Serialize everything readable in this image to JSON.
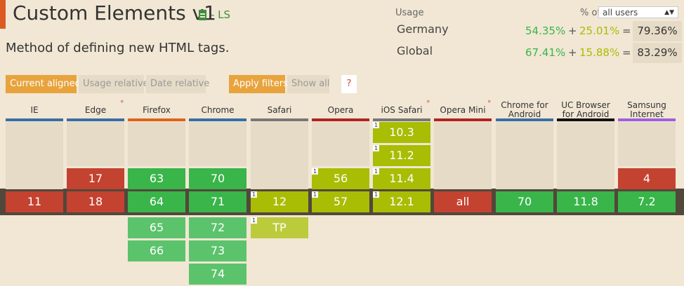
{
  "feature": {
    "title": "Custom Elements v1",
    "status": "- LS",
    "description": "Method of defining new HTML tags."
  },
  "usage": {
    "label": "Usage",
    "pct_of": "% of",
    "scope_select": "all users",
    "rows": [
      {
        "label": "Germany",
        "supported": "54.35%",
        "partial": "25.01%",
        "total": "79.36%"
      },
      {
        "label": "Global",
        "supported": "67.41%",
        "partial": "15.88%",
        "total": "83.29%"
      }
    ],
    "plus": "+",
    "equals": "="
  },
  "filters": {
    "current_aligned": "Current aligned",
    "usage_relative": "Usage relative",
    "date_relative": "Date relative",
    "apply_filters": "Apply filters",
    "show_all": "Show all",
    "help": "?"
  },
  "colors": {
    "supported": "#39b54a",
    "partial": "#a8bd04",
    "unsupported": "#c44230"
  },
  "browsers": [
    {
      "name": "IE",
      "line": "#3a6ea5",
      "star": "",
      "past": [],
      "current": {
        "v": "11",
        "s": "n"
      },
      "future": []
    },
    {
      "name": "Edge",
      "line": "#3a6ea5",
      "star": "*",
      "past": [
        {
          "v": "17",
          "s": "n"
        }
      ],
      "current": {
        "v": "18",
        "s": "n"
      },
      "future": []
    },
    {
      "name": "Firefox",
      "line": "#e0621a",
      "star": "",
      "past": [
        {
          "v": "63",
          "s": "y"
        }
      ],
      "current": {
        "v": "64",
        "s": "y"
      },
      "future": [
        {
          "v": "65",
          "s": "y"
        },
        {
          "v": "66",
          "s": "y"
        }
      ]
    },
    {
      "name": "Chrome",
      "line": "#3a6ea5",
      "star": "",
      "past": [
        {
          "v": "70",
          "s": "y"
        }
      ],
      "current": {
        "v": "71",
        "s": "y"
      },
      "future": [
        {
          "v": "72",
          "s": "y"
        },
        {
          "v": "73",
          "s": "y"
        },
        {
          "v": "74",
          "s": "y"
        }
      ]
    },
    {
      "name": "Safari",
      "line": "#777",
      "star": "",
      "past": [],
      "current": {
        "v": "12",
        "s": "p",
        "note": "1"
      },
      "future": [
        {
          "v": "TP",
          "s": "p",
          "note": "1"
        }
      ]
    },
    {
      "name": "Opera",
      "line": "#b22222",
      "star": "",
      "past": [
        {
          "v": "56",
          "s": "p",
          "note": "1"
        }
      ],
      "current": {
        "v": "57",
        "s": "p",
        "note": "1"
      },
      "future": []
    },
    {
      "name": "iOS Safari",
      "line": "#777",
      "star": "*",
      "past": [
        {
          "v": "10.3",
          "s": "p",
          "note": "1"
        },
        {
          "v": "11.2",
          "s": "p",
          "note": "1"
        },
        {
          "v": "11.4",
          "s": "p",
          "note": "1"
        }
      ],
      "current": {
        "v": "12.1",
        "s": "p",
        "note": "1"
      },
      "future": []
    },
    {
      "name": "Opera Mini",
      "line": "#b22222",
      "star": "*",
      "past": [],
      "current": {
        "v": "all",
        "s": "n"
      },
      "future": []
    },
    {
      "name": "Chrome for Android",
      "line": "#3a6ea5",
      "star": "",
      "past": [],
      "current": {
        "v": "70",
        "s": "y"
      },
      "future": []
    },
    {
      "name": "UC Browser for Android",
      "line": "#111",
      "star": "",
      "past": [],
      "current": {
        "v": "11.8",
        "s": "y"
      },
      "future": []
    },
    {
      "name": "Samsung Internet",
      "line": "#a05ee0",
      "star": "",
      "past": [
        {
          "v": "4",
          "s": "n"
        }
      ],
      "current": {
        "v": "7.2",
        "s": "y"
      },
      "future": []
    }
  ]
}
